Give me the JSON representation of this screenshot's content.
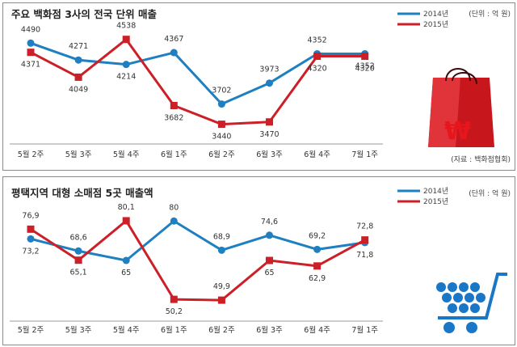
{
  "colors": {
    "series_2014": "#1e7fc1",
    "series_2015": "#cc1f27",
    "axis": "#999999"
  },
  "icons": {
    "chart1": "shopping-bag-icon",
    "chart2": "shopping-cart-icon"
  },
  "chart_data": [
    {
      "type": "line",
      "title": "주요 백화점 3사의 전국 단위 매출",
      "unit": "(단위 : 억 원)",
      "source": "(자료 : 백화점협회)",
      "categories": [
        "5월 2주",
        "5월 3주",
        "5월 4주",
        "6월 1주",
        "6월 2주",
        "6월 3주",
        "6월 4주",
        "7월 1주"
      ],
      "series": [
        {
          "name": "2014년",
          "values": [
            4490,
            4271,
            4214,
            4367,
            3702,
            3973,
            4352,
            4352
          ],
          "labels": [
            "4490",
            "4271",
            "4214",
            "4367",
            "3702",
            "3973",
            "4352",
            "4352"
          ]
        },
        {
          "name": "2015년",
          "values": [
            4371,
            4049,
            4538,
            3682,
            3440,
            3470,
            4320,
            4320
          ],
          "labels": [
            "4371",
            "4049",
            "4538",
            "3682",
            "3440",
            "3470",
            "4320",
            "4320"
          ]
        }
      ],
      "ylim": [
        3300,
        4650
      ],
      "grid": false,
      "legend": "top-right"
    },
    {
      "type": "line",
      "title": "평택지역 대형 소매점 5곳 매출액",
      "unit": "(단위 : 억 원)",
      "categories": [
        "5월 2주",
        "5월 3주",
        "5월 4주",
        "6월 1주",
        "6월 2주",
        "6월 3주",
        "6월 4주",
        "7월 1주"
      ],
      "series": [
        {
          "name": "2014년",
          "values": [
            73.2,
            68.6,
            65,
            80,
            68.9,
            74.6,
            69.2,
            71.8
          ],
          "labels": [
            "73,2",
            "68,6",
            "65",
            "80",
            "68,9",
            "74,6",
            "69,2",
            "71,8"
          ]
        },
        {
          "name": "2015년",
          "values": [
            76.9,
            65.1,
            80.1,
            50.2,
            49.9,
            65,
            62.9,
            72.8
          ],
          "labels": [
            "76,9",
            "65,1",
            "80,1",
            "50,2",
            "49,9",
            "65",
            "62,9",
            "72,8"
          ]
        }
      ],
      "ylim": [
        45,
        85
      ],
      "grid": false,
      "legend": "top-right"
    }
  ]
}
